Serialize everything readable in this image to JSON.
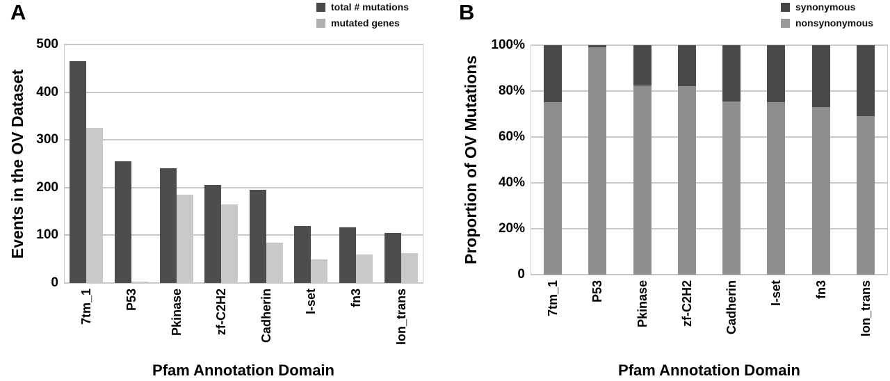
{
  "figure": {
    "background": "#ffffff",
    "grid_color": "#c8c8c8",
    "text_color": "#000000"
  },
  "chart_data": [
    {
      "type": "bar",
      "panel_label": "A",
      "categories": [
        "7tm_1",
        "P53",
        "Pkinase",
        "zf-C2H2",
        "Cadherin",
        "I-set",
        "fn3",
        "Ion_trans"
      ],
      "series": [
        {
          "name": "total # mutations",
          "color": "#4d4d4d",
          "legend_color": "#4a4a4a",
          "values": [
            465,
            255,
            240,
            205,
            196,
            120,
            117,
            105
          ]
        },
        {
          "name": "mutated genes",
          "color": "#c9c9c9",
          "legend_color": "#b0b0b0",
          "values": [
            325,
            3,
            185,
            165,
            85,
            50,
            60,
            62
          ]
        }
      ],
      "ylabel": "Events in the OV Dataset",
      "xlabel": "Pfam Annotation Domain",
      "ylim": [
        0,
        500
      ],
      "yticks": [
        "500",
        "400",
        "300",
        "200",
        "100",
        "0"
      ],
      "grid": true,
      "legend_position": "top-right"
    },
    {
      "type": "stacked-bar-100",
      "panel_label": "B",
      "categories": [
        "7tm_1",
        "P53",
        "Pkinase",
        "zf-C2H2",
        "Cadherin",
        "I-set",
        "fn3",
        "Ion_trans"
      ],
      "series": [
        {
          "name": "synonymous",
          "color": "#4a4a4a",
          "legend_color": "#454545",
          "values": [
            25,
            1,
            17.5,
            18,
            24.5,
            25,
            27,
            31
          ]
        },
        {
          "name": "nonsynonymous",
          "color": "#8f8f8f",
          "legend_color": "#999999",
          "values": [
            75,
            99,
            82.5,
            82,
            75.5,
            75,
            73,
            69
          ]
        }
      ],
      "ylabel": "Proportion of OV Mutations",
      "xlabel": "Pfam Annotation Domain",
      "ylim": [
        0,
        100
      ],
      "yticks": [
        "100%",
        "80%",
        "60%",
        "40%",
        "20%",
        "0"
      ],
      "grid": true,
      "legend_position": "top-right"
    }
  ]
}
